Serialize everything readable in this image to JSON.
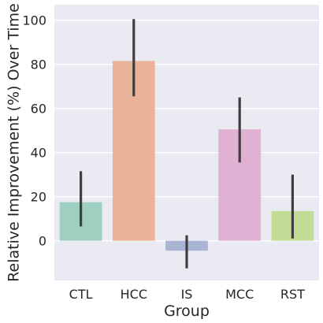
{
  "chart_data": {
    "type": "bar",
    "title": "",
    "xlabel": "Group",
    "ylabel": "Relative Improvement (%) Over Time",
    "categories": [
      "CTL",
      "HCC",
      "IS",
      "MCC",
      "RST"
    ],
    "values": [
      17.5,
      81.5,
      -4.5,
      50.5,
      13.5
    ],
    "error_low": [
      6.5,
      65.5,
      -12.5,
      35.5,
      1
    ],
    "error_high": [
      31.5,
      100.5,
      2.5,
      65,
      30
    ],
    "ylim": [
      -18,
      107
    ],
    "yticks": [
      0,
      20,
      40,
      60,
      80,
      100
    ],
    "grid": true,
    "legend": "none",
    "colors": [
      "#9fcfc0",
      "#ecb39b",
      "#aab4d3",
      "#e1b1d3",
      "#c3dd96"
    ],
    "background": "#eaeaf2",
    "errorbar_color": "#3f3f3f"
  }
}
